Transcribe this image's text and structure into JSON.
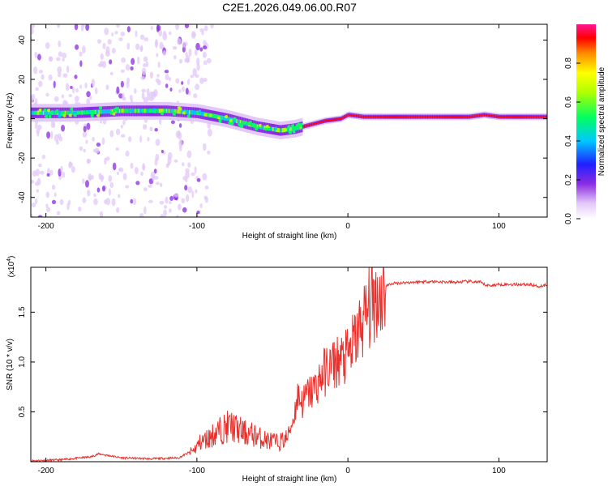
{
  "title": "C2E1.2026.049.06.00.R07",
  "chart_data": [
    {
      "type": "heatmap",
      "xlabel": "Height of straight line (km)",
      "ylabel": "Frequency (Hz)",
      "xlim": [
        -210,
        132
      ],
      "ylim": [
        -50,
        48
      ],
      "xticks": [
        -200,
        -100,
        0,
        100
      ],
      "yticks": [
        -40,
        -20,
        0,
        20,
        40
      ],
      "ridge": {
        "x": [
          -210,
          -180,
          -150,
          -120,
          -100,
          -80,
          -60,
          -45,
          -35,
          -25,
          -15,
          -5,
          0,
          10,
          30,
          60,
          80,
          90,
          100,
          132
        ],
        "freq": [
          3,
          3,
          4,
          4,
          3,
          0,
          -4,
          -6,
          -5,
          -3,
          -1,
          0,
          2,
          1,
          1,
          1,
          1,
          2,
          1,
          1
        ]
      },
      "colorbar": {
        "label": "Normalized spectral amplitude",
        "range": [
          0,
          1
        ],
        "ticks": [
          0.0,
          0.2,
          0.4,
          0.6,
          0.8
        ]
      }
    },
    {
      "type": "line",
      "xlabel": "Height of straight line (km)",
      "ylabel": "SNR (10 * v/v)",
      "scale_label": "(x10",
      "scale_exp": "4",
      "scale_close": ")",
      "xlim": [
        -210,
        132
      ],
      "ylim": [
        0,
        1.95
      ],
      "xticks": [
        -200,
        -100,
        0,
        100
      ],
      "yticks": [
        0.5,
        1.0,
        1.5
      ],
      "color": "#e8302c",
      "series": [
        {
          "name": "SNR",
          "x": [
            -210,
            -190,
            -170,
            -165,
            -150,
            -130,
            -112,
            -102,
            -98,
            -92,
            -88,
            -82,
            -78,
            -72,
            -68,
            -62,
            -58,
            -52,
            -46,
            -40,
            -36,
            -33,
            -30,
            -27,
            -24,
            -20,
            -17,
            -14,
            -10,
            -6,
            -2,
            2,
            6,
            10,
            14,
            18,
            22,
            26,
            30,
            40,
            55,
            70,
            80,
            88,
            90,
            92,
            96,
            100,
            110,
            120,
            126,
            130,
            132
          ],
          "y": [
            0.01,
            0.02,
            0.05,
            0.08,
            0.04,
            0.03,
            0.04,
            0.12,
            0.2,
            0.25,
            0.3,
            0.35,
            0.38,
            0.33,
            0.3,
            0.28,
            0.25,
            0.22,
            0.2,
            0.25,
            0.45,
            0.7,
            0.6,
            0.7,
            0.72,
            0.8,
            0.9,
            0.95,
            1.0,
            1.05,
            1.05,
            1.15,
            1.3,
            1.45,
            1.58,
            1.68,
            1.74,
            1.77,
            1.79,
            1.8,
            1.81,
            1.8,
            1.81,
            1.8,
            1.78,
            1.77,
            1.77,
            1.78,
            1.78,
            1.78,
            1.76,
            1.77,
            1.78
          ]
        }
      ]
    }
  ]
}
